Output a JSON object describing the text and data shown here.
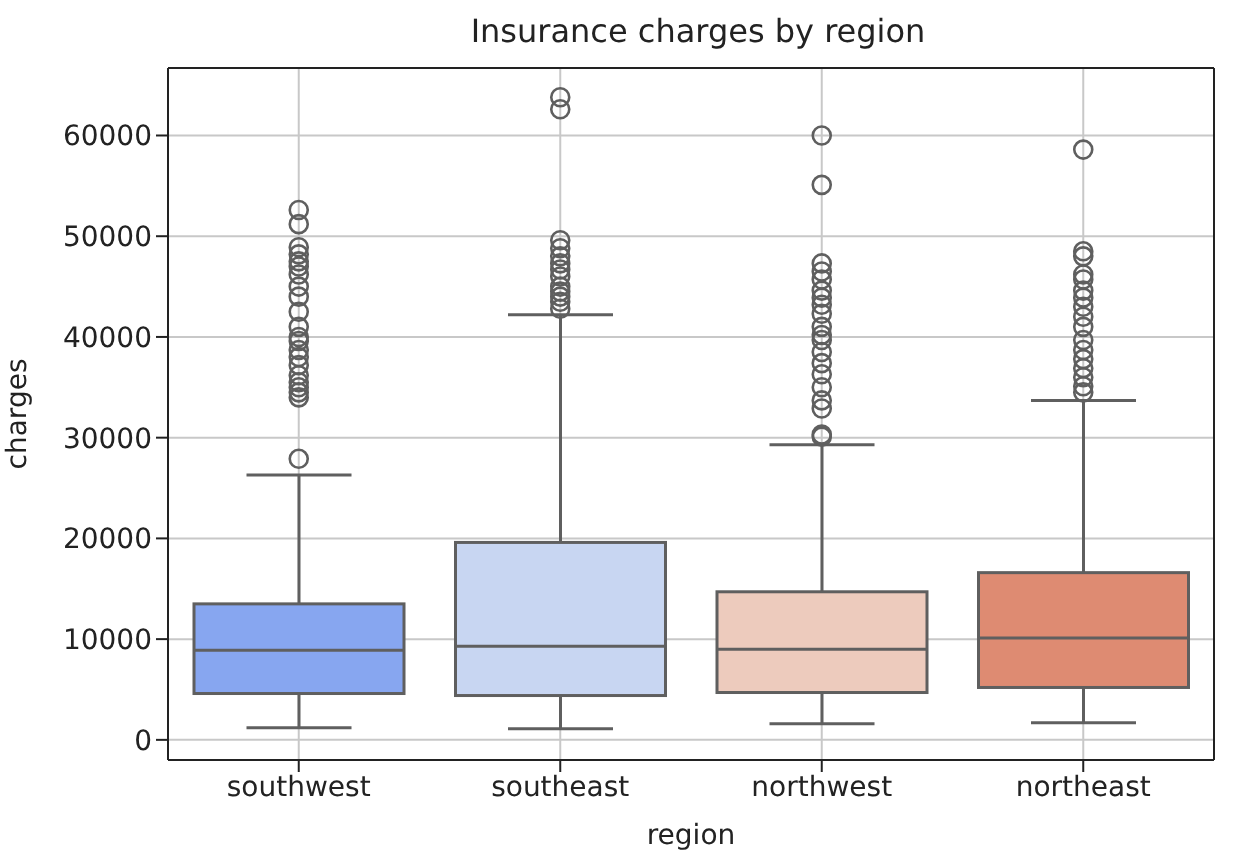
{
  "chart_data": {
    "type": "box",
    "title": "Insurance charges by region",
    "xlabel": "region",
    "ylabel": "charges",
    "categories": [
      "southwest",
      "southeast",
      "northwest",
      "northeast"
    ],
    "colors": [
      "#87a6f0",
      "#c8d6f2",
      "#edcbbd",
      "#de8b72"
    ],
    "boxes": [
      {
        "low": 1200,
        "q1": 4600,
        "median": 8900,
        "q3": 13500,
        "high": 26300,
        "outliers": [
          27900,
          34000,
          34500,
          35000,
          35500,
          36200,
          37200,
          38000,
          38700,
          39600,
          40000,
          41000,
          42500,
          44000,
          45000,
          46200,
          47000,
          47500,
          48200,
          48900,
          51200,
          52600
        ]
      },
      {
        "low": 1100,
        "q1": 4400,
        "median": 9300,
        "q3": 19600,
        "high": 42200,
        "outliers": [
          42800,
          43500,
          44000,
          44500,
          45000,
          46000,
          46700,
          47300,
          48000,
          48800,
          49600,
          62600,
          63800
        ]
      },
      {
        "low": 1600,
        "q1": 4700,
        "median": 9000,
        "q3": 14700,
        "high": 29300,
        "outliers": [
          30100,
          30300,
          32900,
          33700,
          35000,
          36300,
          37400,
          38500,
          39700,
          40200,
          41000,
          42300,
          43200,
          43900,
          44600,
          45700,
          46500,
          47300,
          55100,
          60000
        ]
      },
      {
        "low": 1700,
        "q1": 5200,
        "median": 10100,
        "q3": 16600,
        "high": 33700,
        "outliers": [
          34500,
          35100,
          36000,
          36900,
          37800,
          38700,
          39700,
          41000,
          42000,
          43000,
          43900,
          44600,
          45700,
          46200,
          48000,
          48500,
          58600
        ]
      }
    ],
    "ylim": [
      -2000,
      66700
    ],
    "yticks": [
      0,
      10000,
      20000,
      30000,
      40000,
      50000,
      60000
    ],
    "grid": true
  }
}
